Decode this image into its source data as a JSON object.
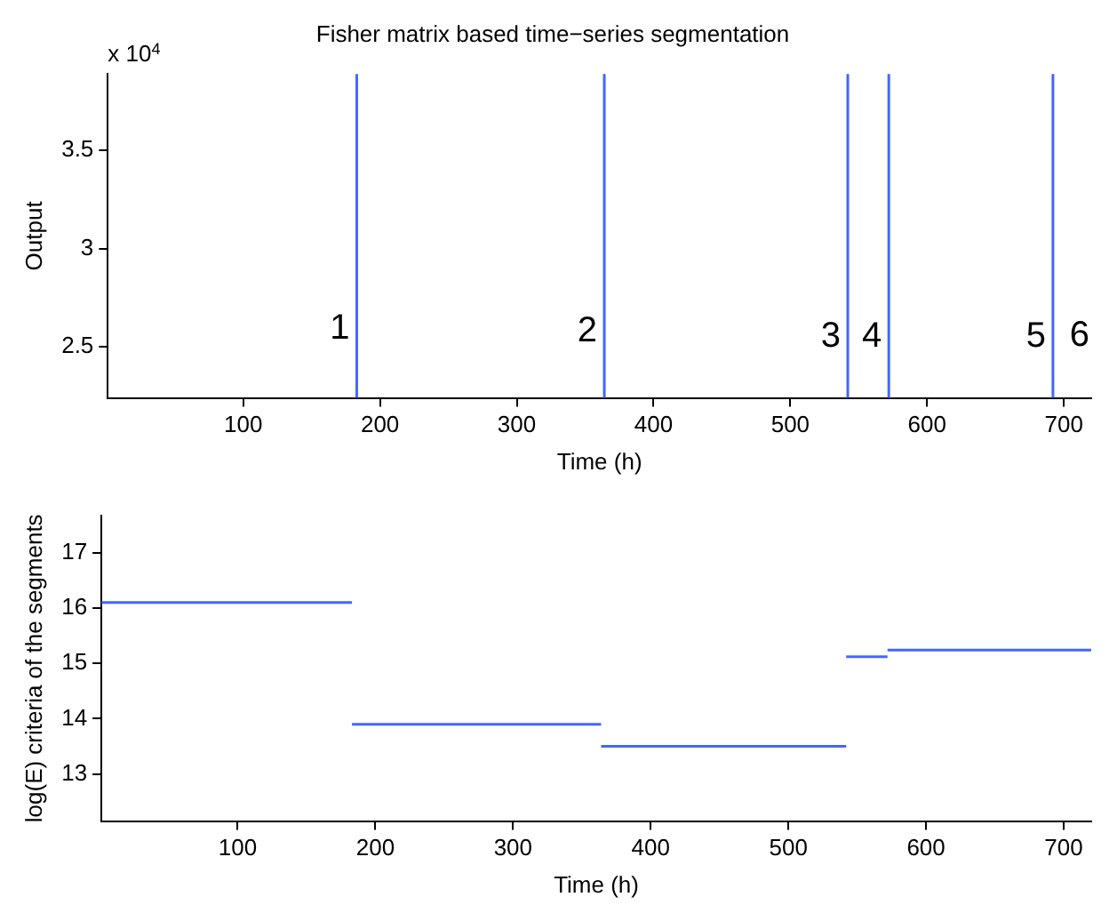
{
  "chart_data": [
    {
      "type": "line",
      "title": "Fisher matrix based time−series segmentation",
      "xlabel": "Time (h)",
      "ylabel": "Output",
      "xlim": [
        1,
        720
      ],
      "xticks": [
        100,
        200,
        300,
        400,
        500,
        600,
        700
      ],
      "ylim": [
        2.24,
        3.89
      ],
      "yticks": [
        2.5,
        3,
        3.5
      ],
      "ref_lines": [
        {
          "axis": "x",
          "value": 183,
          "color": "#4466ff"
        },
        {
          "axis": "x",
          "value": 364,
          "color": "#4466ff"
        },
        {
          "axis": "x",
          "value": 542,
          "color": "#4466ff"
        },
        {
          "axis": "x",
          "value": 572,
          "color": "#4466ff"
        },
        {
          "axis": "x",
          "value": 692,
          "color": "#4466ff"
        }
      ],
      "annotations": [
        "x 10$^{4}$",
        {
          "text": "1",
          "x": 183,
          "y": 2.59
        },
        {
          "text": "2",
          "x": 364,
          "y": 2.58
        },
        {
          "text": "3",
          "x": 542,
          "y": 2.55
        },
        {
          "text": "4",
          "x": 572,
          "y": 2.55
        },
        {
          "text": "5",
          "x": 692,
          "y": 2.55
        },
        "6"
      ],
      "grid": false,
      "legend": false
    },
    {
      "type": "line",
      "xlabel": "Time (h)",
      "ylabel": "log(E) criteria of the segments",
      "xlim": [
        1,
        720
      ],
      "xticks": [
        100,
        200,
        300,
        400,
        500,
        600,
        700
      ],
      "ylim": [
        12.15,
        17.67
      ],
      "yticks": [
        13,
        14,
        15,
        16,
        17
      ],
      "series": [
        {
          "color": "#4466ff",
          "x": [
            1,
            183
          ],
          "values": [
            16.1,
            16.1
          ]
        },
        {
          "color": "#4466ff",
          "x": [
            183,
            364
          ],
          "values": [
            13.9,
            13.9
          ]
        },
        {
          "color": "#4466ff",
          "x": [
            364,
            542
          ],
          "values": [
            13.5,
            13.5
          ]
        },
        {
          "color": "#4466ff",
          "x": [
            542,
            572
          ],
          "values": [
            15.12,
            15.12
          ]
        },
        {
          "color": "#4466ff",
          "x": [
            572,
            720
          ],
          "values": [
            15.24,
            15.24
          ]
        }
      ],
      "grid": false,
      "legend": false,
      "marker": "none"
    }
  ]
}
